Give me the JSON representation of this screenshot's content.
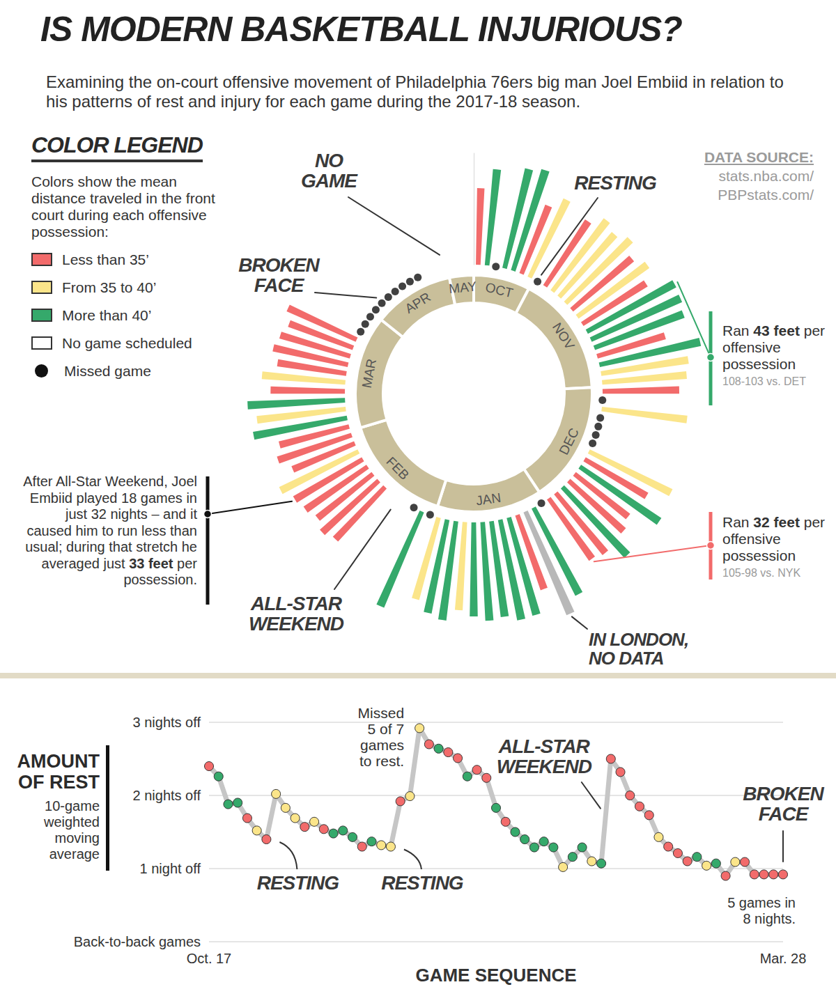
{
  "title": "IS MODERN BASKETBALL INJURIOUS?",
  "subtitle": "Examining the on-court offensive movement of Philadelphia 76ers big man Joel Embiid in relation to his patterns of rest and injury for each game during the 2017-18 season.",
  "source": {
    "title": "DATA SOURCE:",
    "lines": [
      "stats.nba.com/",
      "PBPstats.com/"
    ]
  },
  "chart_data": [
    {
      "type": "polar_bar",
      "legend": "top-left",
      "legend_title": "COLOR LEGEND",
      "legend_intro": "Colors show the mean distance traveled in the front court during each offensive possession:",
      "legend_items": [
        {
          "label": "Less than 35’",
          "color": "#f26b6b"
        },
        {
          "label": "From 35 to 40’",
          "color": "#fbe58a"
        },
        {
          "label": "More than 40’",
          "color": "#35a96b"
        },
        {
          "label": "No game scheduled",
          "color": "#ffffff"
        },
        {
          "label": "Missed game",
          "color": "#111111",
          "marker": "circle"
        }
      ],
      "thresholds": [
        35,
        40
      ],
      "ylim": [
        0,
        48
      ],
      "tick_labels": false,
      "categories": [
        "OCT",
        null,
        null,
        null,
        null,
        null,
        null,
        "NOV",
        null,
        null,
        null,
        null,
        null,
        null,
        null,
        null,
        null,
        null,
        null,
        null,
        null,
        null,
        "DEC",
        null,
        null,
        null,
        null,
        null,
        null,
        null,
        null,
        null,
        null,
        null,
        null,
        null,
        null,
        "JAN",
        null,
        null,
        null,
        null,
        null,
        null,
        null,
        null,
        null,
        null,
        null,
        null,
        "FEB",
        null,
        null,
        null,
        null,
        null,
        null,
        null,
        null,
        null,
        null,
        null,
        null,
        null,
        "MAR",
        null,
        null,
        null,
        null,
        null,
        null,
        null,
        null,
        null,
        null,
        null,
        null,
        null,
        "APR",
        null,
        null,
        null,
        null,
        null,
        null,
        null,
        null,
        null,
        "MAY",
        null,
        null
      ],
      "values": [
        33,
        41.5,
        null,
        44,
        45.5,
        31.5,
        37,
        null,
        33.5,
        38.5,
        36,
        39,
        34,
        37.5,
        32.5,
        43,
        42.5,
        41,
        30.5,
        44.5,
        38,
        36.5,
        33,
        null,
        37,
        null,
        null,
        null,
        null,
        39.5,
        31,
        41.5,
        29.5,
        32,
        40.5,
        33.5,
        32,
        null,
        42,
        null,
        34,
        43.5,
        44,
        41.5,
        42.5,
        40.5,
        38,
        43,
        41,
        36.5,
        null,
        44.5,
        null,
        null,
        null,
        null,
        31,
        33,
        30.5,
        32.5,
        34,
        37.5,
        29,
        33.5,
        31,
        41,
        38.5,
        42,
        32,
        36,
        30,
        33,
        31.5,
        29.5,
        32.5,
        null,
        null,
        null,
        null,
        null,
        null,
        null,
        null,
        null,
        null,
        null,
        null,
        null,
        null,
        null,
        null
      ],
      "status": [
        null,
        null,
        "Missed game",
        null,
        null,
        null,
        null,
        "Missed game",
        null,
        null,
        null,
        null,
        null,
        null,
        null,
        null,
        null,
        null,
        null,
        null,
        null,
        null,
        null,
        "Missed game",
        null,
        "Missed game",
        "Missed game",
        "Missed game",
        "Missed game",
        null,
        null,
        null,
        null,
        null,
        null,
        null,
        null,
        "Missed game",
        null,
        null,
        null,
        null,
        null,
        null,
        null,
        null,
        null,
        null,
        null,
        null,
        "Missed game",
        null,
        "Missed game",
        "No game scheduled",
        "No game scheduled",
        "No game scheduled",
        null,
        null,
        null,
        null,
        null,
        null,
        null,
        null,
        null,
        null,
        null,
        null,
        null,
        null,
        null,
        null,
        null,
        null,
        null,
        "Missed game",
        "Missed game",
        "Missed game",
        "Missed game",
        "Missed game",
        "Missed game",
        "Missed game",
        "Missed game",
        "Missed game",
        "Missed game",
        "No game scheduled",
        "No game scheduled",
        "No game scheduled",
        "No game scheduled",
        "No game scheduled",
        "No game scheduled"
      ],
      "annotations": [
        {
          "text": "NO GAME",
          "x": 87
        },
        {
          "text": "RESTING",
          "x": 7
        },
        {
          "text": "BROKEN FACE",
          "x": 79
        },
        {
          "text": "ALL-STAR WEEKEND",
          "x": 54
        },
        {
          "text": "IN LONDON, NO DATA",
          "x": 39
        }
      ],
      "callouts": [
        {
          "text": "Ran ",
          "bold": "43 feet",
          "after": " per offensive possession",
          "note": "108-103 vs. DET",
          "x": 15,
          "color": "#35a96b"
        },
        {
          "text": "Ran ",
          "bold": "32 feet",
          "after": " per offensive possession",
          "note": "105-98 vs. NYK",
          "x": 36,
          "color": "#f26b6b"
        },
        {
          "text": "After All-Star Weekend, Joel Embiid played 18 games in just 32 nights – and it caused him to run less than usual; during that stretch he averaged just ",
          "bold": "33 feet",
          "after": " per possession.",
          "x": 60,
          "color": "#111111"
        }
      ]
    },
    {
      "type": "line",
      "xlabel": "GAME SEQUENCE",
      "ylabel": "AMOUNT OF REST",
      "ylabel_note": "10-game weighted moving average",
      "grid": true,
      "marker": "circle",
      "ylim": [
        0,
        3
      ],
      "yticks": [
        {
          "value": 0,
          "label": "Back-to-back games"
        },
        {
          "value": 1,
          "label": "1 night off"
        },
        {
          "value": 2,
          "label": "2 nights off"
        },
        {
          "value": 3,
          "label": "3 nights off"
        }
      ],
      "categories": [
        "Oct. 17",
        null,
        null,
        null,
        null,
        null,
        null,
        null,
        null,
        null,
        null,
        null,
        null,
        null,
        null,
        null,
        null,
        null,
        null,
        null,
        null,
        null,
        null,
        null,
        null,
        null,
        null,
        null,
        null,
        null,
        null,
        null,
        null,
        null,
        null,
        null,
        null,
        null,
        null,
        null,
        null,
        null,
        null,
        null,
        null,
        null,
        null,
        null,
        null,
        null,
        null,
        null,
        null,
        null,
        null,
        null,
        null,
        null,
        null,
        null,
        "Mar. 28"
      ],
      "values": [
        2.4,
        2.26,
        1.88,
        1.9,
        1.69,
        1.52,
        1.4,
        2.02,
        1.83,
        1.69,
        1.57,
        1.64,
        1.54,
        1.48,
        1.52,
        1.43,
        1.3,
        1.37,
        1.32,
        1.3,
        1.92,
        1.99,
        2.92,
        2.7,
        2.64,
        2.59,
        2.51,
        2.26,
        2.35,
        2.24,
        1.83,
        1.64,
        1.5,
        1.4,
        1.29,
        1.37,
        1.29,
        1.02,
        1.16,
        1.29,
        1.1,
        1.07,
        2.5,
        2.32,
        2.0,
        1.85,
        1.73,
        1.43,
        1.3,
        1.21,
        1.1,
        1.16,
        1.04,
        1.07,
        0.9,
        1.09,
        1.09,
        0.92,
        0.92,
        0.92,
        0.92
      ],
      "colors": [
        "#f26b6b",
        "#35a96b",
        "#35a96b",
        "#35a96b",
        "#f26b6b",
        "#fbe58a",
        "#f26b6b",
        "#fbe58a",
        "#fbe58a",
        "#fbe58a",
        "#f26b6b",
        "#fbe58a",
        "#f26b6b",
        "#35a96b",
        "#35a96b",
        "#35a96b",
        "#f26b6b",
        "#35a96b",
        "#fbe58a",
        "#fbe58a",
        "#f26b6b",
        "#fbe58a",
        "#fbe58a",
        "#f26b6b",
        "#35a96b",
        "#f26b6b",
        "#f26b6b",
        "#35a96b",
        "#f26b6b",
        "#f26b6b",
        "#35a96b",
        "#f26b6b",
        "#35a96b",
        "#35a96b",
        "#35a96b",
        "#35a96b",
        "#35a96b",
        "#fbe58a",
        "#35a96b",
        "#35a96b",
        "#fbe58a",
        "#35a96b",
        "#f26b6b",
        "#f26b6b",
        "#f26b6b",
        "#f26b6b",
        "#f26b6b",
        "#fbe58a",
        "#f26b6b",
        "#f26b6b",
        "#f26b6b",
        "#35a96b",
        "#fbe58a",
        "#35a96b",
        "#f26b6b",
        "#fbe58a",
        "#f26b6b",
        "#f26b6b",
        "#f26b6b",
        "#f26b6b",
        "#f26b6b"
      ],
      "annotations": [
        {
          "text": "Missed 5 of 7 games to rest.",
          "x": 22
        },
        {
          "text": "RESTING",
          "x": 6
        },
        {
          "text": "RESTING",
          "x": 19
        },
        {
          "text": "ALL-STAR WEEKEND",
          "x": 42
        },
        {
          "text": "BROKEN FACE",
          "x": 60
        },
        {
          "text": "5 games in 8 nights.",
          "x": 60
        }
      ]
    }
  ]
}
